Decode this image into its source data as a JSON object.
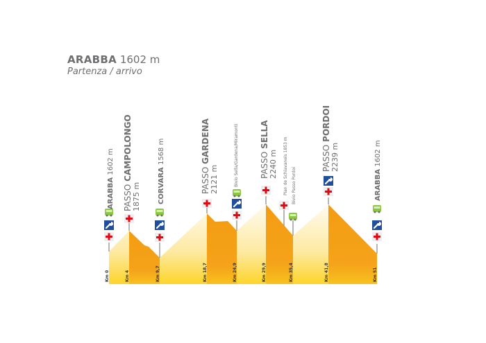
{
  "header": {
    "name": "ARABBA",
    "elevation": "1602 m",
    "subtitle": "Partenza / arrivo"
  },
  "colors": {
    "descent": "#f39c12",
    "climb_top": "#fffaf0",
    "climb_bottom": "#fdd52a",
    "text": "#6d6e70",
    "cross": "#e30613",
    "wrench": "#1f4e9c",
    "bus": "#8dc63f"
  },
  "stations": [
    {
      "km": "Km 0",
      "prefix": "",
      "name": "ARABBA",
      "elev": "1602 m",
      "icons": [
        "bus-icon",
        "wrench-icon",
        "first-aid-icon"
      ]
    },
    {
      "km": "Km 4",
      "prefix": "PASSO ",
      "name": "CAMPOLONGO",
      "elev": "1875 m",
      "icons": [
        "first-aid-icon"
      ]
    },
    {
      "km": "Km 9,7",
      "prefix": "",
      "name": "CORVARA",
      "elev": "1568 m",
      "icons": [
        "bus-icon",
        "wrench-icon",
        "first-aid-icon"
      ]
    },
    {
      "km": "Km 18,7",
      "prefix": "PASSO ",
      "name": "GARDENA",
      "elev": "2121 m",
      "icons": [
        "first-aid-icon"
      ]
    },
    {
      "km": "Km 24,9",
      "note": "Bivio Sella/Gardena/Miramonti",
      "icons": [
        "bus-icon",
        "wrench-icon",
        "first-aid-icon"
      ]
    },
    {
      "km": "Km 29,9",
      "prefix": "PASSO ",
      "name": "SELLA",
      "elev": "2240 m",
      "icons": [
        "first-aid-icon"
      ]
    },
    {
      "note": "Pian de Schiavaneis 1853 m",
      "icons": [
        "first-aid-icon"
      ]
    },
    {
      "km": "Km 35,4",
      "note": "Bivio Passo Pordoi",
      "icons": [
        "bus-icon"
      ]
    },
    {
      "km": "Km 41,8",
      "prefix": "PASSO ",
      "name": "PORDOI",
      "elev": "2239 m",
      "icons": [
        "wrench-icon",
        "first-aid-icon"
      ]
    },
    {
      "km": "Km 51",
      "prefix": "",
      "name": "ARABBA",
      "elev": "1602 m",
      "icons": [
        "bus-icon",
        "wrench-icon",
        "first-aid-icon"
      ]
    }
  ]
}
